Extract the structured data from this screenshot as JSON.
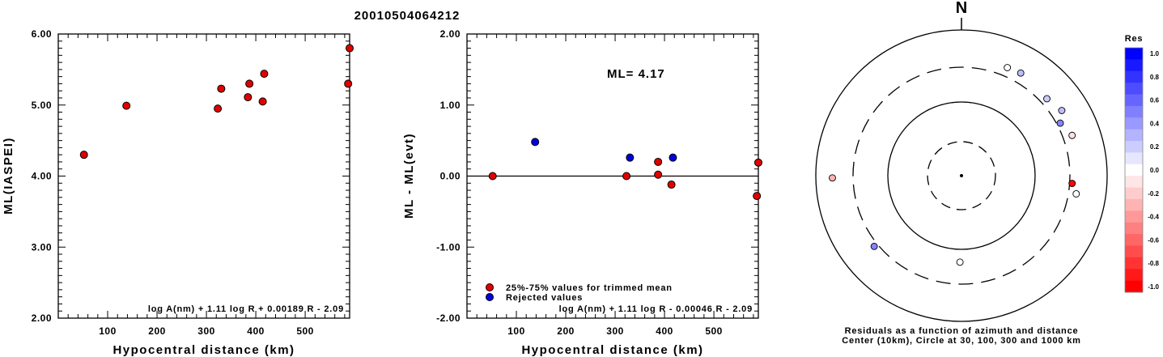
{
  "title": "20010504064212",
  "chart_data": [
    {
      "type": "scatter",
      "xlabel": "Hypocentral distance (km)",
      "ylabel": "ML(IASPEI)",
      "xlim": [
        0,
        590
      ],
      "ylim": [
        2.0,
        6.0
      ],
      "xticks": [
        "100",
        "200",
        "300",
        "400",
        "500"
      ],
      "yticks": [
        "2.00",
        "3.00",
        "4.00",
        "5.00",
        "6.00"
      ],
      "formula": "log A(nm) + 1.11 log R + 0.00189 R - 2.09",
      "series": [
        {
          "color": "#e00000",
          "points": [
            [
              52,
              4.3
            ],
            [
              138,
              4.99
            ],
            [
              323,
              4.95
            ],
            [
              330,
              5.23
            ],
            [
              384,
              5.11
            ],
            [
              387,
              5.3
            ],
            [
              414,
              5.05
            ],
            [
              417,
              5.44
            ],
            [
              587,
              5.3
            ],
            [
              590,
              5.8
            ]
          ]
        }
      ]
    },
    {
      "type": "scatter",
      "xlabel": "Hypocentral distance (km)",
      "ylabel": "ML - ML(evt)",
      "xlim": [
        0,
        590
      ],
      "ylim": [
        -2.0,
        2.0
      ],
      "xticks": [
        "100",
        "200",
        "300",
        "400",
        "500"
      ],
      "yticks": [
        "-2.00",
        "-1.00",
        "0.00",
        "1.00",
        "2.00"
      ],
      "ml_label": "ML=  4.17",
      "formula": "log A(nm) + 1.11 log R - 0.00046 R - 2.09",
      "legend": [
        {
          "label": "25%-75% values for trimmed mean",
          "color": "#e00000"
        },
        {
          "label": "Rejected values",
          "color": "#0000dd"
        }
      ],
      "series": [
        {
          "color": "#e00000",
          "points": [
            [
              52,
              0.0
            ],
            [
              323,
              0.0
            ],
            [
              387,
              0.02
            ],
            [
              387,
              0.2
            ],
            [
              414,
              -0.12
            ],
            [
              587,
              -0.28
            ],
            [
              590,
              0.19
            ]
          ]
        },
        {
          "color": "#0000dd",
          "points": [
            [
              138,
              0.48
            ],
            [
              330,
              0.26
            ],
            [
              417,
              0.26
            ]
          ]
        }
      ]
    },
    {
      "type": "polar",
      "north_label": "N",
      "caption_line1": "Residuals as a function of azimuth and distance",
      "caption_line2": "Center (10km), Circle at 30, 100, 300 and 1000 km",
      "colorbar_title": "Res",
      "colorbar_ticks": [
        "1.0",
        "0.8",
        "0.6",
        "0.4",
        "0.2",
        "0.0",
        "-0.2",
        "-0.4",
        "-0.6",
        "-0.8",
        "-1.0"
      ],
      "stations": [
        {
          "azimuth": 23,
          "distance": 400,
          "residual": 0.0
        },
        {
          "azimuth": 30,
          "distance": 415,
          "residual": 0.26
        },
        {
          "azimuth": 48,
          "distance": 370,
          "residual": 0.2
        },
        {
          "azimuth": 57,
          "distance": 430,
          "residual": 0.26
        },
        {
          "azimuth": 62,
          "distance": 335,
          "residual": 0.48
        },
        {
          "azimuth": 70,
          "distance": 405,
          "residual": -0.12
        },
        {
          "azimuth": 94,
          "distance": 325,
          "residual": -0.98
        },
        {
          "azimuth": 99,
          "distance": 385,
          "residual": 0.0
        },
        {
          "azimuth": 181,
          "distance": 150,
          "residual": 0.0
        },
        {
          "azimuth": 231,
          "distance": 340,
          "residual": 0.48
        },
        {
          "azimuth": 269,
          "distance": 585,
          "residual": -0.3
        }
      ]
    }
  ]
}
